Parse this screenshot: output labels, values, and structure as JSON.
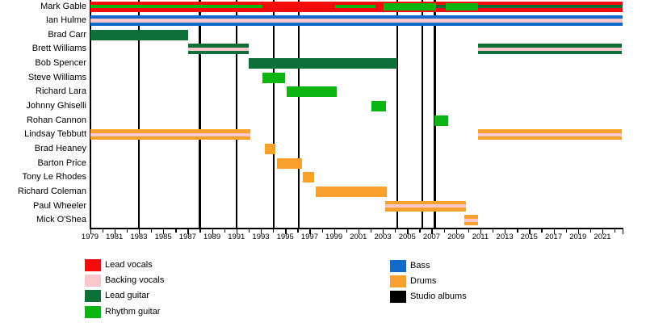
{
  "colors": {
    "lead_vocals": "#f40b0b",
    "backing_vocals": "#f9c7cc",
    "lead_guitar": "#0e7038",
    "rhythm_guitar": "#0cb412",
    "bass": "#1169c9",
    "drums": "#f9a02e",
    "studio_albums": "#000000"
  },
  "chart_data": {
    "type": "bar",
    "subtype": "gantt-band-membership-timeline",
    "x_axis": {
      "start": 1979,
      "end": 2022.65,
      "tick_every_years": 1,
      "label_years": [
        1979,
        1981,
        1983,
        1985,
        1987,
        1989,
        1991,
        1993,
        1995,
        1997,
        1999,
        2001,
        2003,
        2005,
        2007,
        2009,
        2011,
        2013,
        2015,
        2017,
        2019,
        2021
      ]
    },
    "album_lines_years": [
      1983,
      1988,
      1991,
      1994.05,
      1996.1,
      2004.2,
      2006.25,
      2007.25
    ],
    "rows": [
      {
        "label": "Mark Gable",
        "bars": [
          {
            "s": 1979,
            "e": 2022.65,
            "c": "lead_vocals"
          }
        ],
        "overlays": [
          {
            "s": 1979,
            "e": 1993.1,
            "c": "rhythm_guitar",
            "h": 4.5
          },
          {
            "s": 1999.1,
            "e": 2002.4,
            "c": "rhythm_guitar",
            "h": 4.5
          },
          {
            "s": 2003.05,
            "e": 2007.35,
            "c": "rhythm_guitar",
            "h": 9
          },
          {
            "s": 2007.35,
            "e": 2008.15,
            "c": "lead_guitar",
            "h": 4.5
          },
          {
            "s": 2008.15,
            "e": 2010.8,
            "c": "rhythm_guitar",
            "h": 9
          },
          {
            "s": 2010.8,
            "e": 2022.65,
            "c": "lead_guitar",
            "h": 4.5
          }
        ]
      },
      {
        "label": "Ian Hulme",
        "bars": [
          {
            "s": 1979,
            "e": 2022.65,
            "c": "bass",
            "stripe": "backing_vocals"
          }
        ]
      },
      {
        "label": "Brad Carr",
        "bars": [
          {
            "s": 1979,
            "e": 1987.05,
            "c": "lead_guitar"
          }
        ]
      },
      {
        "label": "Brett Williams",
        "bars": [
          {
            "s": 1987.05,
            "e": 1992.0,
            "c": "lead_guitar",
            "stripe": "backing_vocals"
          },
          {
            "s": 2010.8,
            "e": 2022.6,
            "c": "lead_guitar",
            "stripe": "backing_vocals"
          }
        ]
      },
      {
        "label": "Bob Spencer",
        "bars": [
          {
            "s": 1992.0,
            "e": 2004.2,
            "c": "lead_guitar"
          }
        ]
      },
      {
        "label": "Steve Williams",
        "bars": [
          {
            "s": 1993.1,
            "e": 1995.0,
            "c": "rhythm_guitar"
          }
        ]
      },
      {
        "label": "Richard Lara",
        "bars": [
          {
            "s": 1995.1,
            "e": 1999.2,
            "c": "rhythm_guitar"
          }
        ]
      },
      {
        "label": "Johnny Ghiselli",
        "bars": [
          {
            "s": 2002.1,
            "e": 2003.25,
            "c": "rhythm_guitar"
          }
        ]
      },
      {
        "label": "Rohan Cannon",
        "bars": [
          {
            "s": 2007.25,
            "e": 2008.35,
            "c": "rhythm_guitar"
          }
        ]
      },
      {
        "label": "Lindsay Tebbutt",
        "bars": [
          {
            "s": 1979,
            "e": 1992.15,
            "c": "drums",
            "stripe": "backing_vocals"
          },
          {
            "s": 2010.8,
            "e": 2022.6,
            "c": "drums",
            "stripe": "backing_vocals"
          }
        ]
      },
      {
        "label": "Brad Heaney",
        "bars": [
          {
            "s": 1993.3,
            "e": 1994.2,
            "c": "drums"
          }
        ]
      },
      {
        "label": "Barton Price",
        "bars": [
          {
            "s": 1994.3,
            "e": 1996.35,
            "c": "drums"
          }
        ]
      },
      {
        "label": "Tony Le Rhodes",
        "bars": [
          {
            "s": 1996.45,
            "e": 1997.35,
            "c": "drums"
          }
        ]
      },
      {
        "label": "Richard Coleman",
        "bars": [
          {
            "s": 1997.5,
            "e": 2003.3,
            "c": "drums"
          }
        ]
      },
      {
        "label": "Paul Wheeler",
        "bars": [
          {
            "s": 2003.2,
            "e": 2009.8,
            "c": "drums",
            "stripe": "backing_vocals"
          }
        ]
      },
      {
        "label": "Mick O'Shea",
        "bars": [
          {
            "s": 2009.7,
            "e": 2010.8,
            "c": "drums",
            "stripe": "backing_vocals"
          }
        ]
      }
    ],
    "legend": {
      "left": [
        {
          "label": "Lead vocals",
          "key": "lead_vocals"
        },
        {
          "label": "Backing vocals",
          "key": "backing_vocals"
        },
        {
          "label": "Lead guitar",
          "key": "lead_guitar"
        },
        {
          "label": "Rhythm guitar",
          "key": "rhythm_guitar"
        }
      ],
      "right": [
        {
          "label": "Bass",
          "key": "bass"
        },
        {
          "label": "Drums",
          "key": "drums"
        },
        {
          "label": "Studio albums",
          "key": "studio_albums"
        }
      ]
    }
  }
}
